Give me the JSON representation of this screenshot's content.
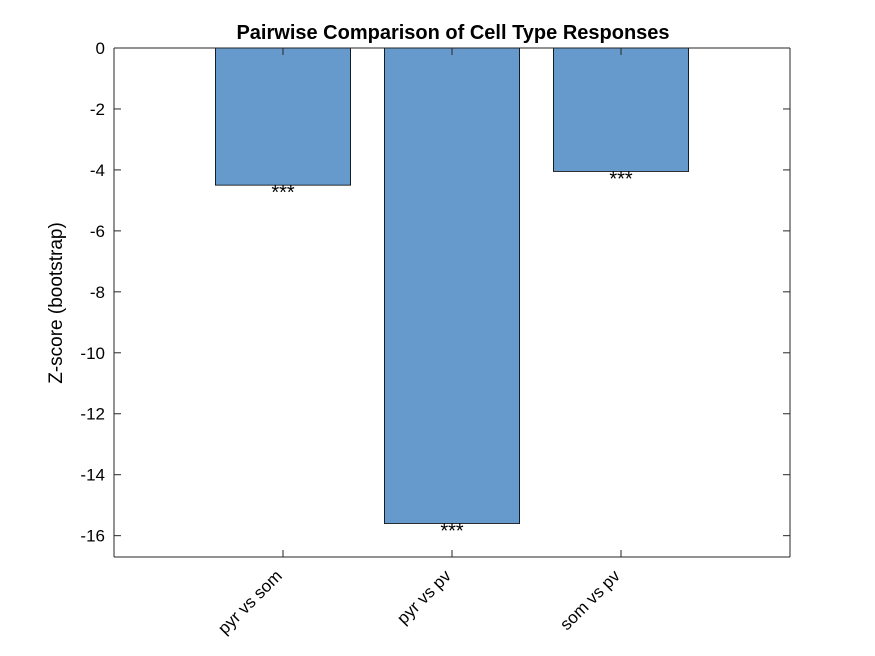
{
  "chart_data": {
    "type": "bar",
    "title": "Pairwise Comparison of Cell Type Responses",
    "xlabel": "",
    "ylabel": "Z-score (bootstrap)",
    "categories": [
      "pyr vs som",
      "pyr vs pv",
      "som vs pv"
    ],
    "values": [
      -4.5,
      -15.6,
      -4.05
    ],
    "annotations": [
      "***",
      "***",
      "***"
    ],
    "ylim": [
      -16.7,
      0
    ],
    "yticks": [
      0,
      -2,
      -4,
      -6,
      -8,
      -10,
      -12,
      -14,
      -16
    ],
    "ytick_labels": [
      "0",
      "-2",
      "-4",
      "-6",
      "-8",
      "-10",
      "-12",
      "-14",
      "-16"
    ],
    "xlim": [
      0,
      4
    ],
    "grid": false,
    "bar_color": "#6699cc",
    "bar_edge_color": "#000000"
  }
}
